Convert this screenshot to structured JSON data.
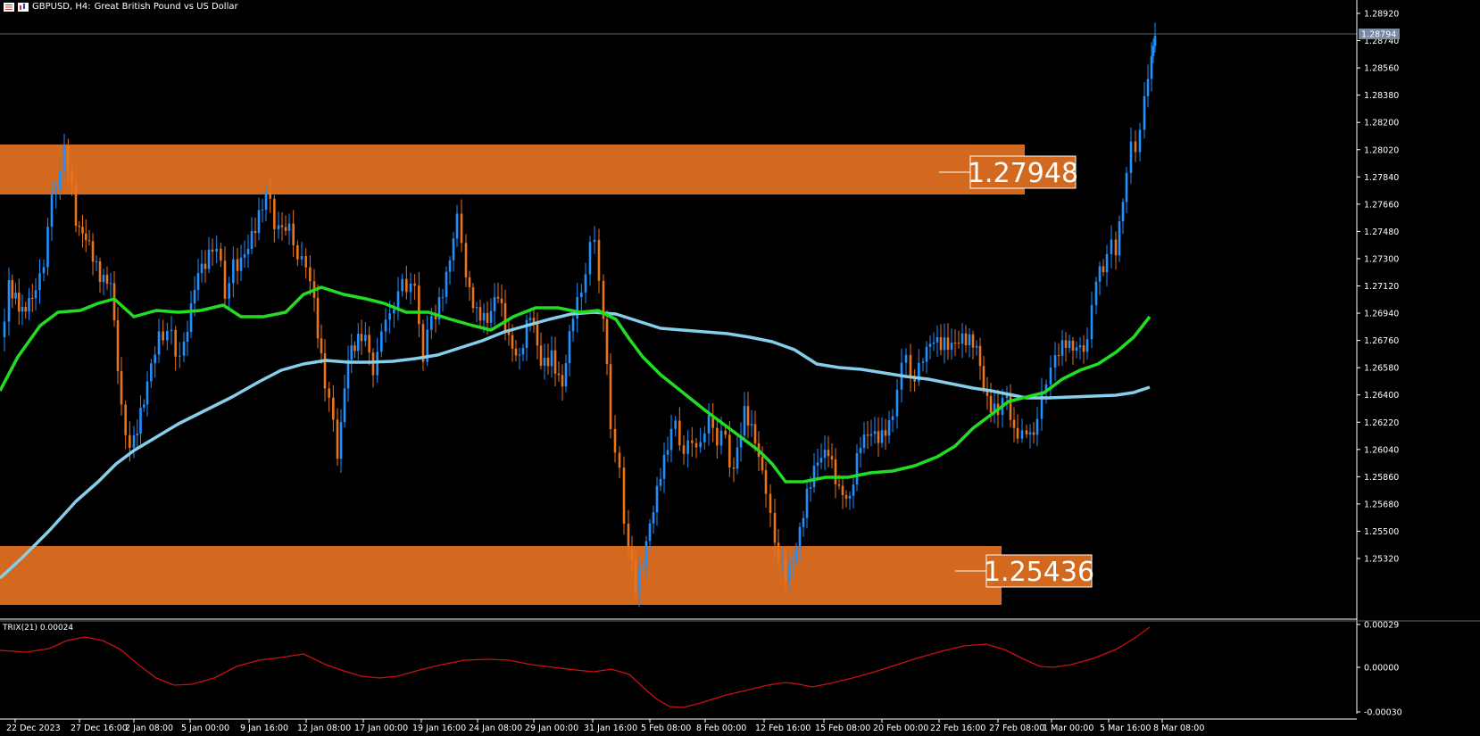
{
  "header": {
    "symbol": "GBPUSD, H4:",
    "description": "Great British Pound vs US Dollar"
  },
  "indicator": {
    "label": "TRIX(21) 0.00024",
    "axis_labels": [
      "0.00029",
      "0.00000",
      "-0.00030"
    ]
  },
  "price_axis": {
    "labels": [
      "1.28920",
      "1.28740",
      "1.28560",
      "1.28380",
      "1.28200",
      "1.28020",
      "1.27840",
      "1.27660",
      "1.27480",
      "1.27300",
      "1.27120",
      "1.26940",
      "1.26760",
      "1.26580",
      "1.26400",
      "1.26220",
      "1.26040",
      "1.25860",
      "1.25680",
      "1.25500",
      "1.25320"
    ],
    "current_price": "1.28794"
  },
  "time_axis": {
    "labels": [
      "22 Dec 2023",
      "27 Dec 16:00",
      "2 Jan 08:00",
      "5 Jan 00:00",
      "9 Jan 16:00",
      "12 Jan 08:00",
      "17 Jan 00:00",
      "19 Jan 16:00",
      "24 Jan 08:00",
      "29 Jan 00:00",
      "31 Jan 16:00",
      "5 Feb 08:00",
      "8 Feb 00:00",
      "12 Feb 16:00",
      "15 Feb 08:00",
      "20 Feb 00:00",
      "22 Feb 16:00",
      "27 Feb 08:00",
      "1 Mar 00:00",
      "5 Mar 16:00",
      "8 Mar 08:00"
    ]
  },
  "zones": [
    {
      "label": "1.27948"
    },
    {
      "label": "1.25436"
    }
  ],
  "colors": {
    "background": "#000000",
    "zone": "#D2691E",
    "bull_candle": "#1E90FF",
    "bear_candle": "#E8751A",
    "fast_ma": "#22DD22",
    "slow_ma": "#87CEEB",
    "trix": "#CC1111",
    "axis": "#FFFFFF"
  }
}
